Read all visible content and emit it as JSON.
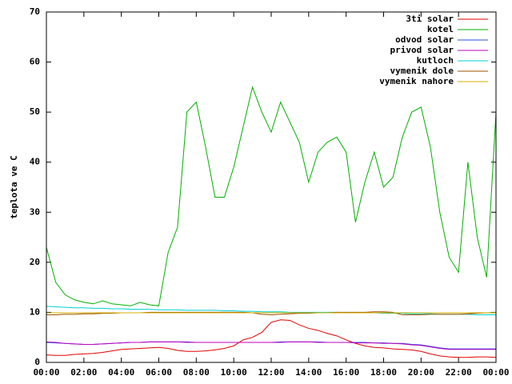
{
  "chart_data": {
    "type": "line",
    "ylabel": "teplota ve C",
    "x": [
      0,
      0.5,
      1,
      1.5,
      2,
      2.5,
      3,
      3.5,
      4,
      4.5,
      5,
      5.5,
      6,
      6.5,
      7,
      7.5,
      8,
      8.5,
      9,
      9.5,
      10,
      10.5,
      11,
      11.5,
      12,
      12.5,
      13,
      13.5,
      14,
      14.5,
      15,
      15.5,
      16,
      16.5,
      17,
      17.5,
      18,
      18.5,
      19,
      19.5,
      20,
      20.5,
      21,
      21.5,
      22,
      22.5,
      23,
      23.5,
      24
    ],
    "xlim": [
      0,
      24
    ],
    "xticks": [
      {
        "value": 0,
        "label": "00:00"
      },
      {
        "value": 2,
        "label": "02:00"
      },
      {
        "value": 4,
        "label": "04:00"
      },
      {
        "value": 6,
        "label": "06:00"
      },
      {
        "value": 8,
        "label": "08:00"
      },
      {
        "value": 10,
        "label": "10:00"
      },
      {
        "value": 12,
        "label": "12:00"
      },
      {
        "value": 14,
        "label": "14:00"
      },
      {
        "value": 16,
        "label": "16:00"
      },
      {
        "value": 18,
        "label": "18:00"
      },
      {
        "value": 20,
        "label": "20:00"
      },
      {
        "value": 22,
        "label": "22:00"
      },
      {
        "value": 24,
        "label": "00:00"
      }
    ],
    "ylim": [
      0,
      70
    ],
    "yticks": [
      0,
      10,
      20,
      30,
      40,
      50,
      60,
      70
    ],
    "grid": false,
    "legend": "top-right",
    "series": [
      {
        "name": "3ti solar",
        "color": "#e00000",
        "values": [
          1.5,
          1.4,
          1.4,
          1.6,
          1.7,
          1.8,
          2.0,
          2.3,
          2.6,
          2.7,
          2.8,
          2.9,
          3.0,
          2.8,
          2.4,
          2.2,
          2.2,
          2.3,
          2.5,
          2.8,
          3.3,
          4.5,
          5,
          6,
          8,
          8.5,
          8.4,
          7.5,
          6.8,
          6.4,
          5.8,
          5.3,
          4.5,
          3.8,
          3.3,
          3,
          2.9,
          2.7,
          2.6,
          2.5,
          2.2,
          1.7,
          1.3,
          1.1,
          1,
          1,
          1.1,
          1.1,
          1.0
        ]
      },
      {
        "name": "kotel",
        "color": "#00b000",
        "values": [
          23,
          16,
          13.5,
          12.5,
          12,
          11.7,
          12.3,
          11.7,
          11.5,
          11.3,
          12,
          11.5,
          11.3,
          22,
          27,
          50,
          52,
          43,
          33,
          33,
          39,
          47,
          55,
          50,
          46,
          52,
          48,
          44,
          36,
          42,
          44,
          45,
          42,
          28,
          36,
          42,
          35,
          37,
          45,
          50,
          51,
          43,
          30,
          21,
          18,
          40,
          25,
          17,
          50
        ]
      },
      {
        "name": "odvod solar",
        "color": "#2050e0",
        "values": [
          4.0,
          3.9,
          3.8,
          3.7,
          3.6,
          3.6,
          3.7,
          3.8,
          3.9,
          4.0,
          4.0,
          4.1,
          4.1,
          4.1,
          4.1,
          4.1,
          4.0,
          4.0,
          4.0,
          4.0,
          4.0,
          4.0,
          4.0,
          4.0,
          4.0,
          4.1,
          4.1,
          4.1,
          4.1,
          4.1,
          4.0,
          4.0,
          4.0,
          4.0,
          4.0,
          3.9,
          3.9,
          3.8,
          3.8,
          3.6,
          3.5,
          3.2,
          2.9,
          2.7,
          2.7,
          2.7,
          2.7,
          2.7,
          2.7
        ]
      },
      {
        "name": "privod solar",
        "color": "#c000c0",
        "values": [
          4.1,
          4.0,
          3.8,
          3.7,
          3.6,
          3.6,
          3.7,
          3.8,
          3.9,
          4.0,
          4.0,
          4.1,
          4.1,
          4.1,
          4.1,
          4.0,
          4.0,
          4.0,
          4.0,
          4.0,
          4.0,
          4.0,
          4.0,
          4.0,
          4.0,
          4.0,
          4.1,
          4.1,
          4.1,
          4.0,
          4.0,
          4.0,
          4.0,
          3.9,
          3.9,
          3.9,
          3.8,
          3.8,
          3.7,
          3.5,
          3.4,
          3.1,
          2.8,
          2.6,
          2.6,
          2.6,
          2.6,
          2.6,
          2.6
        ]
      },
      {
        "name": "kutloch",
        "color": "#00d0d0",
        "values": [
          11.2,
          11.1,
          11.0,
          10.9,
          10.9,
          10.8,
          10.8,
          10.7,
          10.7,
          10.6,
          10.6,
          10.6,
          10.5,
          10.5,
          10.5,
          10.4,
          10.4,
          10.4,
          10.4,
          10.3,
          10.3,
          10.2,
          10.2,
          10.1,
          10.1,
          10.1,
          10.0,
          10.0,
          10.0,
          10.0,
          10.0,
          10.0,
          9.9,
          9.9,
          9.9,
          9.9,
          9.8,
          9.8,
          9.8,
          9.7,
          9.7,
          9.7,
          9.6,
          9.6,
          9.6,
          9.6,
          9.5,
          9.5,
          9.5
        ]
      },
      {
        "name": "vymenik dole",
        "color": "#a05000",
        "values": [
          9.5,
          9.5,
          9.6,
          9.6,
          9.7,
          9.7,
          9.8,
          9.8,
          9.9,
          9.9,
          9.9,
          10.0,
          10.0,
          10.0,
          10.0,
          10.0,
          10.0,
          10.0,
          10.0,
          10.0,
          10.0,
          10.0,
          9.9,
          9.6,
          9.5,
          9.6,
          9.7,
          9.8,
          9.8,
          9.9,
          9.9,
          10.0,
          10.0,
          10.0,
          10.0,
          10.1,
          10.1,
          10.0,
          9.5,
          9.5,
          9.5,
          9.6,
          9.6,
          9.6,
          9.6,
          9.7,
          9.8,
          9.9,
          10.0
        ]
      },
      {
        "name": "vymenik nahore",
        "color": "#d0b000",
        "values": [
          9.9,
          9.9,
          9.9,
          9.9,
          9.9,
          9.9,
          9.9,
          9.9,
          9.9,
          9.9,
          9.9,
          9.9,
          9.9,
          9.9,
          9.9,
          9.9,
          9.9,
          9.9,
          9.9,
          9.9,
          9.9,
          9.9,
          9.9,
          9.9,
          9.9,
          9.9,
          9.9,
          9.9,
          9.9,
          9.9,
          9.9,
          9.9,
          9.9,
          9.9,
          9.9,
          9.9,
          9.9,
          9.9,
          9.9,
          9.9,
          9.9,
          9.9,
          9.9,
          9.9,
          9.9,
          9.9,
          9.9,
          9.9,
          9.9
        ]
      }
    ]
  }
}
